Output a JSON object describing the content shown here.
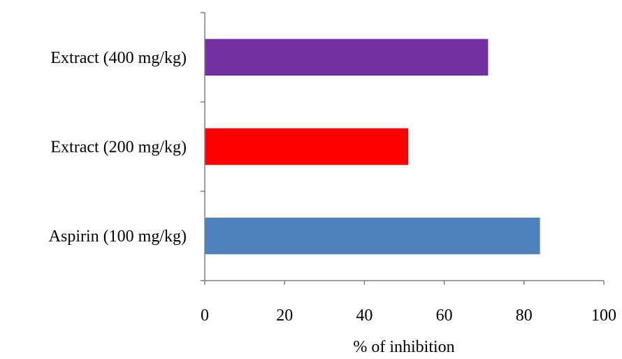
{
  "chart_data": {
    "type": "bar",
    "orientation": "horizontal",
    "categories": [
      "Aspirin (100 mg/kg)",
      "Extract (200 mg/kg)",
      "Extract (400 mg/kg)"
    ],
    "values": [
      84,
      51,
      71
    ],
    "colors": [
      "#4f81bd",
      "#ff0000",
      "#7030a0"
    ],
    "xlabel": "% of inhibition",
    "ylabel": "",
    "xlim": [
      0,
      100
    ],
    "xticks": [
      0,
      20,
      40,
      60,
      80,
      100
    ],
    "grid": false,
    "legend": "none"
  }
}
